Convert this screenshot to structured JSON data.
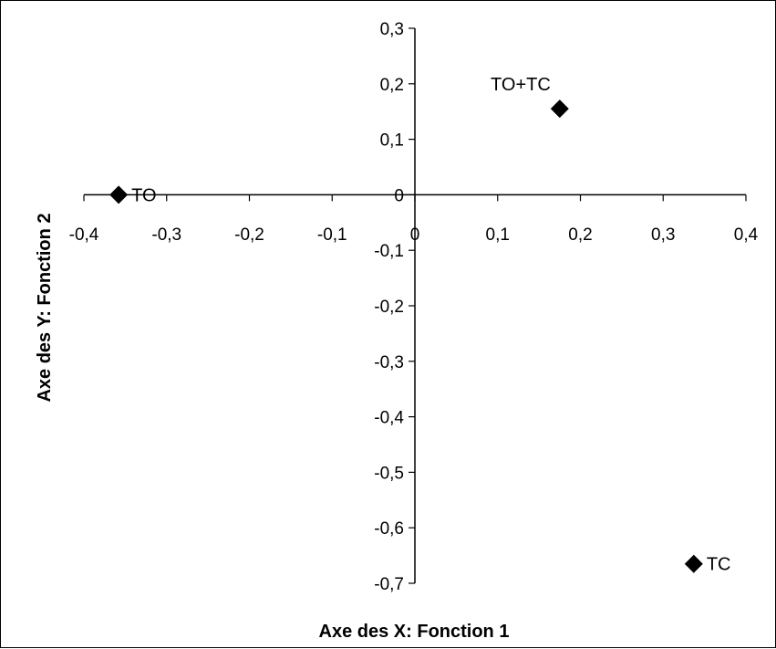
{
  "chart_data": {
    "type": "scatter",
    "xlabel": "Axe des X: Fonction 1",
    "ylabel": "Axe des Y: Fonction 2",
    "xlim": [
      -0.4,
      0.4
    ],
    "ylim": [
      -0.7,
      0.3
    ],
    "x_ticks": [
      -0.4,
      -0.3,
      -0.2,
      -0.1,
      0,
      0.1,
      0.2,
      0.3,
      0.4
    ],
    "x_tick_labels": [
      "-0,4",
      "-0,3",
      "-0,2",
      "-0,1",
      "0",
      "0,1",
      "0,2",
      "0,3",
      "0,4"
    ],
    "y_ticks": [
      0.3,
      0.2,
      0.1,
      0,
      -0.1,
      -0.2,
      -0.3,
      -0.4,
      -0.5,
      -0.6,
      -0.7
    ],
    "y_tick_labels": [
      "0,3",
      "0,2",
      "0,1",
      "0",
      "-0,1",
      "-0,2",
      "-0,3",
      "-0,4",
      "-0,5",
      "-0,6",
      "-0,7"
    ],
    "points": [
      {
        "label": "TO",
        "x": -0.358,
        "y": 0.0,
        "label_position": "right"
      },
      {
        "label": "TO+TC",
        "x": 0.175,
        "y": 0.155,
        "label_position": "above-left"
      },
      {
        "label": "TC",
        "x": 0.337,
        "y": -0.665,
        "label_position": "right"
      }
    ],
    "marker": "diamond",
    "marker_color": "#000000",
    "grid": false,
    "legend": "none"
  }
}
